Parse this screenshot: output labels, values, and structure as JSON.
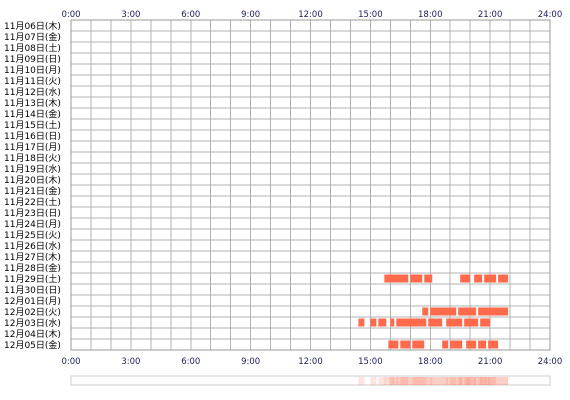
{
  "chart_data": {
    "type": "timeline",
    "x_ticks": [
      "0:00",
      "3:00",
      "6:00",
      "9:00",
      "12:00",
      "15:00",
      "18:00",
      "21:00",
      "24:00"
    ],
    "xlim": [
      0,
      24
    ],
    "grid": true,
    "rows": [
      "11月06日(木)",
      "11月07日(金)",
      "11月08日(土)",
      "11月09日(日)",
      "11月10日(月)",
      "11月11日(火)",
      "11月12日(水)",
      "11月13日(木)",
      "11月14日(金)",
      "11月15日(土)",
      "11月16日(日)",
      "11月17日(月)",
      "11月18日(火)",
      "11月19日(水)",
      "11月20日(木)",
      "11月21日(金)",
      "11月22日(土)",
      "11月23日(日)",
      "11月24日(月)",
      "11月25日(火)",
      "11月26日(水)",
      "11月27日(木)",
      "11月28日(金)",
      "11月29日(土)",
      "11月30日(日)",
      "12月01日(月)",
      "12月02日(火)",
      "12月03日(水)",
      "12月04日(木)",
      "12月05日(金)"
    ],
    "colors": {
      "bar": "#ff6a4d",
      "grid": "#b3b3b3",
      "frame": "#999999",
      "tick": "#1a1a66"
    },
    "events": [
      {
        "row": 23,
        "start": 15.7,
        "end": 16.9
      },
      {
        "row": 23,
        "start": 17.0,
        "end": 17.6
      },
      {
        "row": 23,
        "start": 17.7,
        "end": 18.1
      },
      {
        "row": 23,
        "start": 19.5,
        "end": 20.0
      },
      {
        "row": 23,
        "start": 20.2,
        "end": 20.6
      },
      {
        "row": 23,
        "start": 20.7,
        "end": 21.3
      },
      {
        "row": 23,
        "start": 21.4,
        "end": 21.9
      },
      {
        "row": 26,
        "start": 17.6,
        "end": 17.9
      },
      {
        "row": 26,
        "start": 18.0,
        "end": 19.3
      },
      {
        "row": 26,
        "start": 19.4,
        "end": 20.3
      },
      {
        "row": 26,
        "start": 20.4,
        "end": 21.9
      },
      {
        "row": 27,
        "start": 14.4,
        "end": 14.7
      },
      {
        "row": 27,
        "start": 15.0,
        "end": 15.3
      },
      {
        "row": 27,
        "start": 15.4,
        "end": 15.8
      },
      {
        "row": 27,
        "start": 16.0,
        "end": 16.2
      },
      {
        "row": 27,
        "start": 16.3,
        "end": 17.8
      },
      {
        "row": 27,
        "start": 17.9,
        "end": 18.6
      },
      {
        "row": 27,
        "start": 18.8,
        "end": 19.6
      },
      {
        "row": 27,
        "start": 19.7,
        "end": 20.4
      },
      {
        "row": 27,
        "start": 20.5,
        "end": 21.0
      },
      {
        "row": 29,
        "start": 15.9,
        "end": 16.4
      },
      {
        "row": 29,
        "start": 16.5,
        "end": 17.0
      },
      {
        "row": 29,
        "start": 17.1,
        "end": 17.7
      },
      {
        "row": 29,
        "start": 18.6,
        "end": 18.9
      },
      {
        "row": 29,
        "start": 19.0,
        "end": 19.6
      },
      {
        "row": 29,
        "start": 19.8,
        "end": 20.3
      },
      {
        "row": 29,
        "start": 20.4,
        "end": 20.8
      },
      {
        "row": 29,
        "start": 20.9,
        "end": 21.4
      }
    ]
  }
}
